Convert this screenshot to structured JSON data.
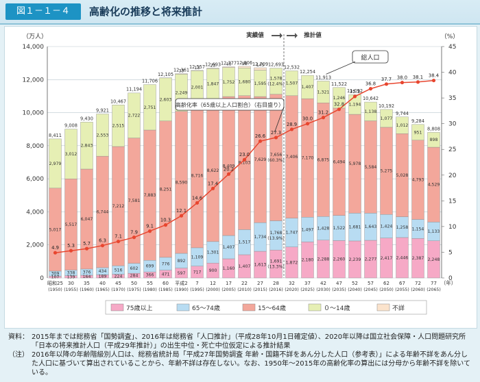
{
  "header": {
    "figure_label": "図１－１－４",
    "title": "高齢化の推移と将来推計"
  },
  "chart_data": {
    "type": "bar",
    "title": "高齢化の推移と将来推計",
    "ylabel_left": "（万人）",
    "ylabel_right": "（%）",
    "xlabel": "（年）",
    "ylim_left": [
      0,
      14000
    ],
    "ylim_right": [
      0,
      45
    ],
    "yticks_left": [
      "0",
      "2,000",
      "4,000",
      "6,000",
      "8,000",
      "10,000",
      "12,000",
      "14,000"
    ],
    "yticks_right": [
      "0",
      "5",
      "10",
      "15",
      "20",
      "25",
      "30",
      "35",
      "40",
      "45"
    ],
    "categories": [
      {
        "era": "昭和25",
        "year": "(1950)"
      },
      {
        "era": "30",
        "year": "(1955)"
      },
      {
        "era": "35",
        "year": "(1960)"
      },
      {
        "era": "40",
        "year": "(1965)"
      },
      {
        "era": "45",
        "year": "(1970)"
      },
      {
        "era": "50",
        "year": "(1975)"
      },
      {
        "era": "55",
        "year": "(1980)"
      },
      {
        "era": "60",
        "year": "(1985)"
      },
      {
        "era": "平成2",
        "year": "(1990)"
      },
      {
        "era": "7",
        "year": "(1995)"
      },
      {
        "era": "12",
        "year": "(2000)"
      },
      {
        "era": "17",
        "year": "(2005)"
      },
      {
        "era": "22",
        "year": "(2010)"
      },
      {
        "era": "27",
        "year": "(2015)"
      },
      {
        "era": "28",
        "year": "(2016)"
      },
      {
        "era": "32",
        "year": "(2020)"
      },
      {
        "era": "37",
        "year": "(2025)"
      },
      {
        "era": "42",
        "year": "(2030)"
      },
      {
        "era": "47",
        "year": "(2035)"
      },
      {
        "era": "52",
        "year": "(2040)"
      },
      {
        "era": "57",
        "year": "(2045)"
      },
      {
        "era": "62",
        "year": "(2050)"
      },
      {
        "era": "67",
        "year": "(2055)"
      },
      {
        "era": "72",
        "year": "(2060)"
      },
      {
        "era": "77",
        "year": "(2065)"
      }
    ],
    "series": [
      {
        "name": "75歳以上",
        "color": "#f6a9c6",
        "values": [
          107,
          139,
          164,
          189,
          224,
          284,
          366,
          471,
          597,
          717,
          900,
          1160,
          1407,
          1613,
          1691,
          1872,
          2180,
          2288,
          2260,
          2239,
          2277,
          2417,
          2446,
          2387,
          2248
        ],
        "labels": [
          "107",
          "139",
          "164",
          "189",
          "224",
          "284",
          "366",
          "471",
          "597",
          "717",
          "900",
          "1,160",
          "1,407",
          "1,613",
          "1,691\n(13.3%)",
          "1,872",
          "2,180",
          "2,288",
          "2,260",
          "2,239",
          "2,277",
          "2,417",
          "2,446",
          "2,387",
          "2,248"
        ]
      },
      {
        "name": "65～74歳",
        "color": "#b8dcf2",
        "values": [
          309,
          338,
          376,
          434,
          516,
          602,
          699,
          776,
          892,
          1109,
          1301,
          1407,
          1517,
          1734,
          1768,
          1747,
          1497,
          1428,
          1522,
          1681,
          1643,
          1424,
          1258,
          1154,
          1133
        ],
        "labels": [
          "309",
          "338",
          "376",
          "434",
          "516",
          "602",
          "699",
          "776",
          "892",
          "1,109",
          "1,301",
          "1,407",
          "1,517",
          "1,734",
          "1,768\n(13.9%)",
          "1,747",
          "1,497",
          "1,428",
          "1,522",
          "1,681",
          "1,643",
          "1,424",
          "1,258",
          "1,154",
          "1,133"
        ]
      },
      {
        "name": "15～64歳",
        "color": "#f3a79b",
        "values": [
          5017,
          5517,
          6047,
          6744,
          7212,
          7581,
          7883,
          8251,
          8590,
          8716,
          8622,
          8409,
          8103,
          7629,
          7656,
          7406,
          7170,
          6875,
          6494,
          5978,
          5584,
          5275,
          5028,
          4793,
          4529
        ],
        "labels": [
          "5,017",
          "5,517",
          "6,047",
          "6,744",
          "7,212",
          "7,581",
          "7,883",
          "8,251",
          "8,590",
          "8,716",
          "8,622",
          "8,409",
          "8,103",
          "7,629",
          "7,656\n(60.3%)",
          "7,406",
          "7,170",
          "6,875",
          "6,494",
          "5,978",
          "5,584",
          "5,275",
          "5,028",
          "4,793",
          "4,529"
        ]
      },
      {
        "name": "０～14歳",
        "color": "#e6efb4",
        "values": [
          2979,
          3012,
          2843,
          2553,
          2515,
          2722,
          2751,
          2603,
          2249,
          2001,
          1847,
          1752,
          1680,
          1595,
          1578,
          1507,
          1407,
          1321,
          1246,
          1194,
          1138,
          1077,
          1012,
          951,
          898
        ],
        "labels": [
          "2,979",
          "3,012",
          "2,843",
          "2,553",
          "2,515",
          "2,722",
          "2,751",
          "2,603",
          "2,249",
          "2,001",
          "1,847",
          "1,752",
          "1,680",
          "1,595",
          "1,578\n(12.4%)",
          "1,507",
          "1,407",
          "1,321",
          "1,246",
          "1,194",
          "1,138",
          "1,077",
          "1,012",
          "951",
          "898"
        ]
      },
      {
        "name": "不詳",
        "color": "#fbe3cc",
        "values": [
          0,
          0,
          0,
          0,
          0,
          0,
          0,
          4,
          33,
          13,
          23,
          48,
          98,
          145,
          0,
          0,
          0,
          0,
          0,
          0,
          0,
          0,
          0,
          0,
          0
        ],
        "labels": [
          "",
          "",
          "",
          "",
          "",
          "",
          "",
          "",
          "33",
          "13",
          "23",
          "48",
          "98",
          "145",
          "",
          "",
          "",
          "",
          "",
          "",
          "",
          "",
          "",
          "",
          ""
        ]
      }
    ],
    "totals": [
      "8,411",
      "9,008",
      "9,430",
      "9,921",
      "10,467",
      "11,194",
      "11,706",
      "12,105",
      "12,361",
      "12,557",
      "12,693",
      "12,777",
      "12,806",
      "12,709",
      "12,693",
      "12,532",
      "12,254",
      "11,913",
      "11,522",
      "11,092",
      "10,642",
      "10,192",
      "9,744",
      "9,284",
      "8,808"
    ],
    "totals_values": [
      8411,
      9008,
      9430,
      9921,
      10467,
      11194,
      11706,
      12105,
      12361,
      12557,
      12693,
      12777,
      12806,
      12709,
      12693,
      12532,
      12254,
      11913,
      11522,
      11092,
      10642,
      10192,
      9744,
      9284,
      8808
    ],
    "line": {
      "name": "高齢化率（65歳以上人口割合）（右目盛り）",
      "color": "#e8462f",
      "values": [
        4.9,
        5.3,
        5.7,
        6.3,
        7.1,
        7.9,
        9.1,
        10.3,
        12.1,
        14.6,
        17.4,
        20.2,
        23.0,
        26.6,
        27.3,
        28.9,
        30.0,
        31.2,
        32.8,
        35.3,
        36.8,
        37.7,
        38.0,
        38.1,
        38.4
      ],
      "labels": [
        "4.9",
        "5.3",
        "5.7",
        "6.3",
        "7.1",
        "7.9",
        "9.1",
        "10.3",
        "12.1",
        "14.6",
        "17.4",
        "20.2",
        "23.0",
        "26.6",
        "27.3",
        "28.9",
        "30.0",
        "31.2",
        "32.8",
        "35.3",
        "36.8",
        "37.7",
        "38.0",
        "38.1",
        "38.4"
      ]
    },
    "annotations": {
      "actual": "実績値",
      "projected": "推計値",
      "total_population": "総人口"
    },
    "legend": [
      "75歳以上",
      "65～74歳",
      "15～64歳",
      "０～14歳",
      "不詳"
    ]
  },
  "notes": [
    {
      "label": "資料：",
      "text": "2015年までは総務省「国勢調査」、2016年は総務省「人口推計」（平成28年10月1日確定値）、2020年以降は国立社会保障・人口問題研究所「日本の将来推計人口（平成29年推計）」の出生中位・死亡中位仮定による推計結果"
    },
    {
      "label": "（注）",
      "text": "2016年以降の年齢階級別人口は、総務省統計局「平成27年国勢調査 年齢・国籍不詳をあん分した人口（参考表）」による年齢不詳をあん分した人口に基づいて算出されていることから、年齢不詳は存在しない。なお、1950年～2015年の高齢化率の算出には分母から年齢不詳を除いている。"
    }
  ]
}
